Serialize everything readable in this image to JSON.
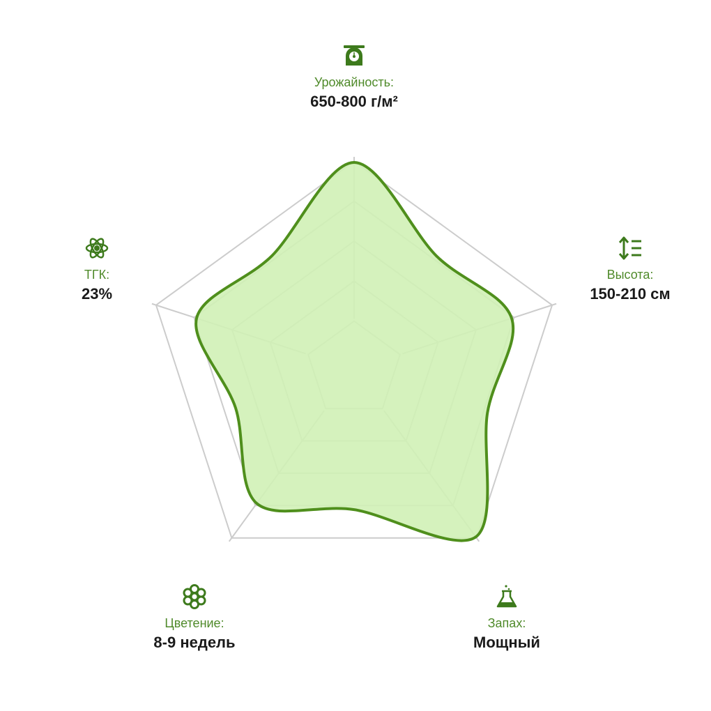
{
  "chart_data": {
    "type": "radar",
    "axes": [
      {
        "label": "Урожайность:",
        "value_text": "650-800 г/м²",
        "icon": "scale-icon",
        "score": 5
      },
      {
        "label": "Высота:",
        "value_text": "150-210 см",
        "icon": "height-arrows-icon",
        "score": 4
      },
      {
        "label": "Запах:",
        "value_text": "Мощный",
        "icon": "flask-icon",
        "score": 5
      },
      {
        "label": "Цветение:",
        "value_text": "8-9 недель",
        "icon": "flower-icon",
        "score": 4
      },
      {
        "label": "ТГК:",
        "value_text": "23%",
        "icon": "atom-icon",
        "score": 4
      }
    ],
    "scale_max": 5,
    "rings": 5,
    "colors": {
      "fill": "#d0f1b6",
      "stroke": "#4f8f1c",
      "grid": "#cccccc",
      "label": "#4f8a2a",
      "value": "#1a1a1a"
    }
  }
}
